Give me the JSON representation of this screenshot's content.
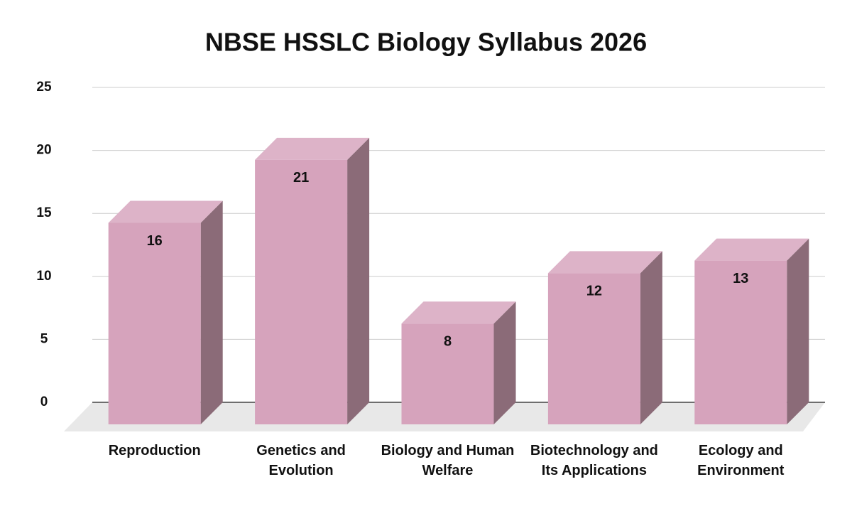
{
  "chart_data": {
    "type": "bar3d",
    "title": "NBSE HSSLC  Biology Syllabus 2026",
    "categories": [
      "Reproduction",
      "Genetics and Evolution",
      "Biology and Human Welfare",
      "Biotechnology and Its Applications",
      "Ecology and Environment"
    ],
    "values": [
      16,
      21,
      8,
      12,
      13
    ],
    "color": "#d6a3bc",
    "ylim": [
      0,
      25
    ],
    "yticks": [
      0,
      5,
      10,
      15,
      20,
      25
    ],
    "grid": true
  }
}
